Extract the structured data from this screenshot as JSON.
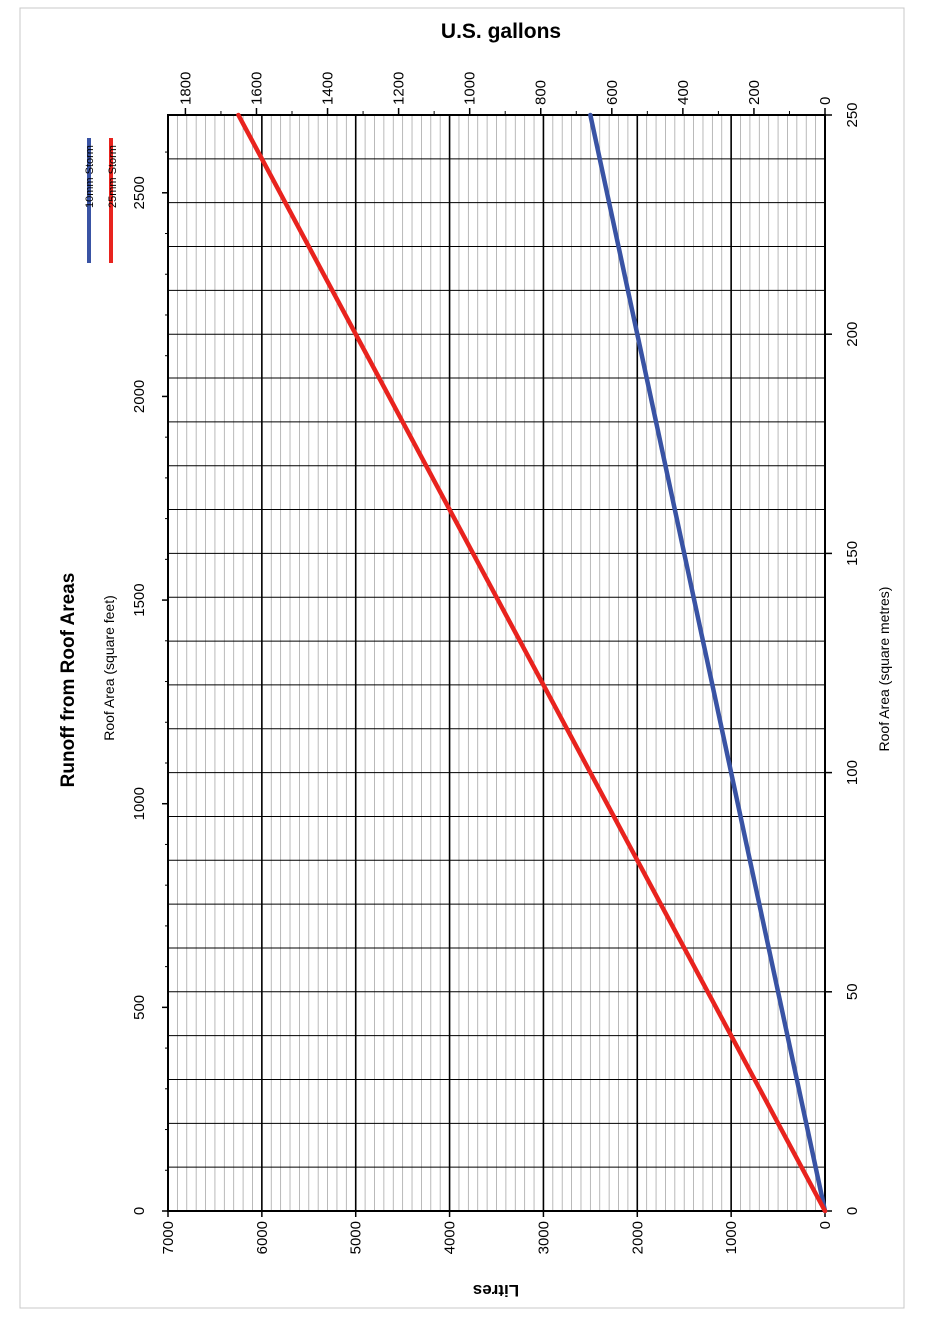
{
  "chart_data": {
    "type": "line",
    "title": "Runoff from Roof Areas",
    "xlabel": "Roof Area (square metres)",
    "x2label": "Roof Area (square feet)",
    "ylabel": "Litres",
    "y2label": "U.S. gallons",
    "xlim": [
      0,
      250
    ],
    "ylim": [
      0,
      7000
    ],
    "x2lim": [
      0,
      2691
    ],
    "y2lim": [
      0,
      1849
    ],
    "x_ticks": [
      0,
      50,
      100,
      150,
      200,
      250
    ],
    "x_tick_labels": [
      "0",
      "50",
      "100",
      "150",
      "200",
      "250"
    ],
    "x2_ticks": [
      0,
      500,
      1000,
      1500,
      2000,
      2500
    ],
    "x2_tick_labels": [
      "0",
      "500",
      "1000",
      "1500",
      "2000",
      "2500"
    ],
    "y_ticks": [
      0,
      1000,
      2000,
      3000,
      4000,
      5000,
      6000,
      7000
    ],
    "y_tick_labels": [
      "0",
      "1000",
      "2000",
      "3000",
      "4000",
      "5000",
      "6000",
      "7000"
    ],
    "y2_ticks": [
      0,
      200,
      400,
      600,
      800,
      1000,
      1200,
      1400,
      1600,
      1800
    ],
    "y2_tick_labels": [
      "0",
      "200",
      "400",
      "600",
      "800",
      "1000",
      "1200",
      "1400",
      "1600",
      "1800"
    ],
    "grid": true,
    "orientation": "rotated 90 degrees clockwise",
    "legend_position": "top-left",
    "series": [
      {
        "name": "10mm Storm",
        "color": "#3953a4",
        "x": [
          0,
          250
        ],
        "y": [
          0,
          2500
        ]
      },
      {
        "name": "25mm Storm",
        "color": "#e8231e",
        "x": [
          0,
          250
        ],
        "y": [
          0,
          6250
        ]
      }
    ]
  }
}
